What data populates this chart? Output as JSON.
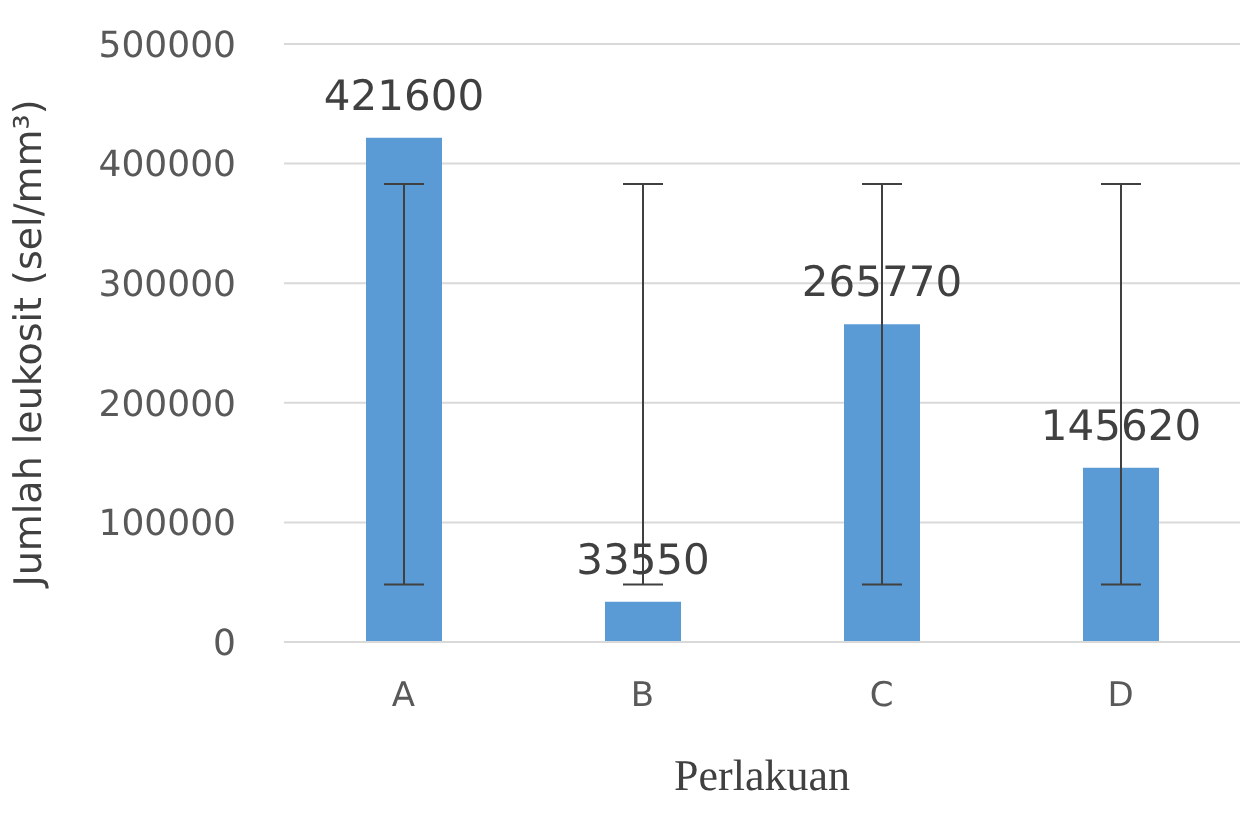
{
  "chart_data": {
    "type": "bar",
    "ylabel": "Jumlah leukosit (sel/mm³)",
    "xlabel": "Perlakuan",
    "categories": [
      "A",
      "B",
      "C",
      "D"
    ],
    "values": [
      421600,
      33550,
      265770,
      145620
    ],
    "color": "#5b9bd5",
    "errors": [
      [
        48000,
        383000
      ],
      [
        48000,
        383000
      ],
      [
        48000,
        383000
      ],
      [
        48000,
        383000
      ]
    ],
    "ylim": [
      0,
      500000
    ],
    "yticks": [
      0,
      100000,
      200000,
      300000,
      400000,
      500000
    ],
    "grid": "y",
    "data_labels": true
  }
}
